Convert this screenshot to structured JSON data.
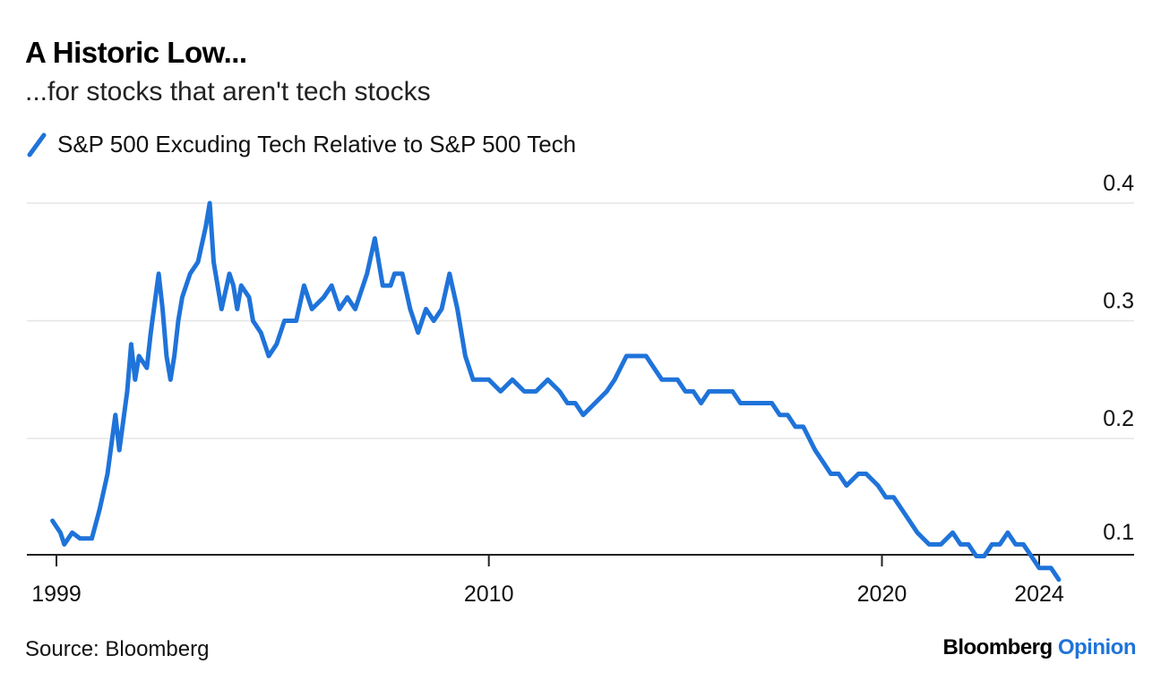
{
  "header": {
    "title": "A Historic Low...",
    "subtitle": "...for stocks that aren't tech stocks"
  },
  "legend": {
    "label": "S&P 500 Excuding Tech Relative to S&P 500 Tech",
    "icon": "line-swatch-icon"
  },
  "footer": {
    "source": "Source: Bloomberg",
    "brand": "Bloomberg",
    "brand_accent": "Opinion"
  },
  "colors": {
    "series": "#1f73d9",
    "grid": "#e6e6e6",
    "axis": "#222222",
    "text": "#000000"
  },
  "chart_data": {
    "type": "line",
    "title": "A Historic Low...",
    "subtitle": "...for stocks that aren't tech stocks",
    "xlabel": "",
    "ylabel": "",
    "xlim": [
      1999,
      2026.4
    ],
    "ylim": [
      0.075,
      0.4
    ],
    "grid": true,
    "legend_position": "top-left",
    "y_axis_side": "right",
    "x_ticks": [
      {
        "value": 1999,
        "label": "1999"
      },
      {
        "value": 2010,
        "label": "2010"
      },
      {
        "value": 2020,
        "label": "2020"
      },
      {
        "value": 2024,
        "label": "2024"
      }
    ],
    "y_ticks": [
      {
        "value": 0.4,
        "label": "0.4"
      },
      {
        "value": 0.3,
        "label": "0.3"
      },
      {
        "value": 0.2,
        "label": "0.2"
      },
      {
        "value": 0.1,
        "label": "0.1"
      }
    ],
    "series": [
      {
        "name": "S&P 500 Excuding Tech Relative to S&P 500 Tech",
        "x": [
          1998.9,
          1999.1,
          1999.2,
          1999.4,
          1999.6,
          1999.9,
          2000.1,
          2000.3,
          2000.5,
          2000.6,
          2000.8,
          2000.9,
          2001.0,
          2001.1,
          2001.3,
          2001.4,
          2001.6,
          2001.7,
          2001.8,
          2001.9,
          2002.0,
          2002.1,
          2002.2,
          2002.4,
          2002.6,
          2002.8,
          2002.9,
          2003.0,
          2003.2,
          2003.4,
          2003.5,
          2003.6,
          2003.7,
          2003.9,
          2004.0,
          2004.2,
          2004.4,
          2004.6,
          2004.8,
          2005.1,
          2005.3,
          2005.5,
          2005.8,
          2006.0,
          2006.2,
          2006.4,
          2006.6,
          2006.9,
          2007.1,
          2007.3,
          2007.5,
          2007.6,
          2007.8,
          2008.0,
          2008.2,
          2008.4,
          2008.6,
          2008.8,
          2009.0,
          2009.2,
          2009.4,
          2009.6,
          2009.8,
          2010.0,
          2010.3,
          2010.6,
          2010.9,
          2011.2,
          2011.5,
          2011.8,
          2012.0,
          2012.2,
          2012.4,
          2012.7,
          2013.0,
          2013.2,
          2013.5,
          2013.7,
          2014.0,
          2014.2,
          2014.4,
          2014.6,
          2014.8,
          2015.0,
          2015.2,
          2015.4,
          2015.6,
          2015.9,
          2016.2,
          2016.4,
          2016.6,
          2016.8,
          2017.0,
          2017.2,
          2017.4,
          2017.6,
          2017.8,
          2018.0,
          2018.3,
          2018.5,
          2018.7,
          2018.9,
          2019.1,
          2019.4,
          2019.6,
          2019.9,
          2020.1,
          2020.3,
          2020.5,
          2020.7,
          2020.9,
          2021.2,
          2021.5,
          2021.8,
          2022.0,
          2022.2,
          2022.4,
          2022.6,
          2022.8,
          2023.0,
          2023.2,
          2023.4,
          2023.6,
          2023.8,
          2024.0,
          2024.3,
          2024.5
        ],
        "values": [
          0.13,
          0.12,
          0.11,
          0.12,
          0.115,
          0.115,
          0.14,
          0.17,
          0.22,
          0.19,
          0.24,
          0.28,
          0.25,
          0.27,
          0.26,
          0.29,
          0.34,
          0.31,
          0.27,
          0.25,
          0.27,
          0.3,
          0.32,
          0.34,
          0.35,
          0.38,
          0.4,
          0.35,
          0.31,
          0.34,
          0.33,
          0.31,
          0.33,
          0.32,
          0.3,
          0.29,
          0.27,
          0.28,
          0.3,
          0.3,
          0.33,
          0.31,
          0.32,
          0.33,
          0.31,
          0.32,
          0.31,
          0.34,
          0.37,
          0.33,
          0.33,
          0.34,
          0.34,
          0.31,
          0.29,
          0.31,
          0.3,
          0.31,
          0.34,
          0.31,
          0.27,
          0.25,
          0.25,
          0.25,
          0.24,
          0.25,
          0.24,
          0.24,
          0.25,
          0.24,
          0.23,
          0.23,
          0.22,
          0.23,
          0.24,
          0.25,
          0.27,
          0.27,
          0.27,
          0.26,
          0.25,
          0.25,
          0.25,
          0.24,
          0.24,
          0.23,
          0.24,
          0.24,
          0.24,
          0.23,
          0.23,
          0.23,
          0.23,
          0.23,
          0.22,
          0.22,
          0.21,
          0.21,
          0.19,
          0.18,
          0.17,
          0.17,
          0.16,
          0.17,
          0.17,
          0.16,
          0.15,
          0.15,
          0.14,
          0.13,
          0.12,
          0.11,
          0.11,
          0.12,
          0.11,
          0.11,
          0.1,
          0.1,
          0.11,
          0.11,
          0.12,
          0.11,
          0.11,
          0.1,
          0.09,
          0.09,
          0.08
        ]
      }
    ]
  }
}
